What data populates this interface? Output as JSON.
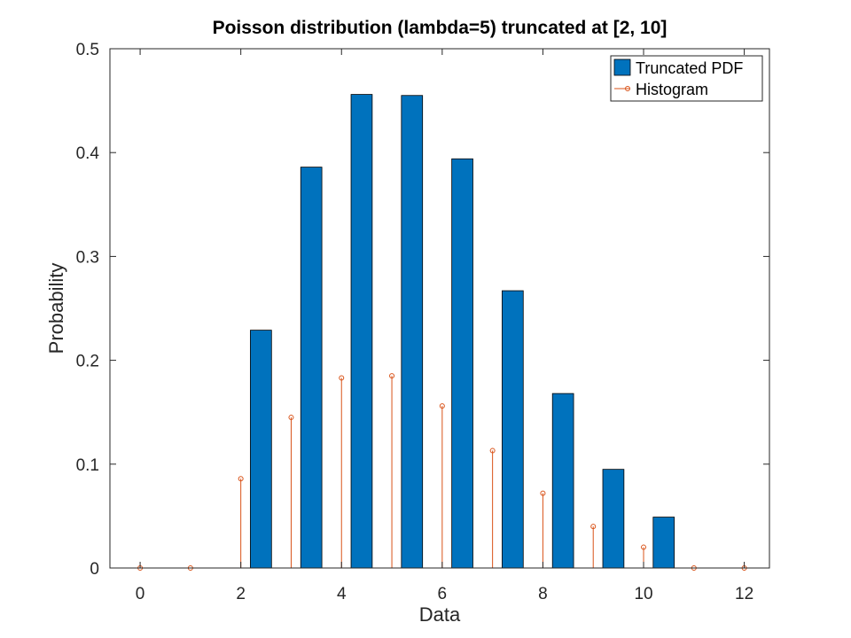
{
  "chart_data": {
    "type": "bar",
    "title": "Poisson distribution (lambda=5) truncated at [2, 10]",
    "xlabel": "Data",
    "ylabel": "Probability",
    "xlim": [
      -0.6,
      12.5
    ],
    "ylim": [
      0,
      0.5
    ],
    "xticks": [
      0,
      2,
      4,
      6,
      8,
      10,
      12
    ],
    "yticks": [
      0,
      0.1,
      0.2,
      0.3,
      0.4,
      0.5
    ],
    "grid": false,
    "legend_position": "top-right",
    "series": [
      {
        "name": "Truncated PDF",
        "kind": "bar",
        "color": "#0072BD",
        "x": [
          2.4,
          3.4,
          4.4,
          5.4,
          6.4,
          7.4,
          8.4,
          9.4,
          10.4
        ],
        "values": [
          0.229,
          0.386,
          0.456,
          0.455,
          0.394,
          0.267,
          0.168,
          0.095,
          0.049
        ]
      },
      {
        "name": "Histogram",
        "kind": "stem",
        "color": "#D95319",
        "x": [
          0,
          1,
          2,
          3,
          4,
          5,
          6,
          7,
          8,
          9,
          10,
          11,
          12
        ],
        "values": [
          0,
          0,
          0.086,
          0.145,
          0.183,
          0.185,
          0.156,
          0.113,
          0.072,
          0.04,
          0.02,
          0,
          0
        ]
      }
    ]
  }
}
